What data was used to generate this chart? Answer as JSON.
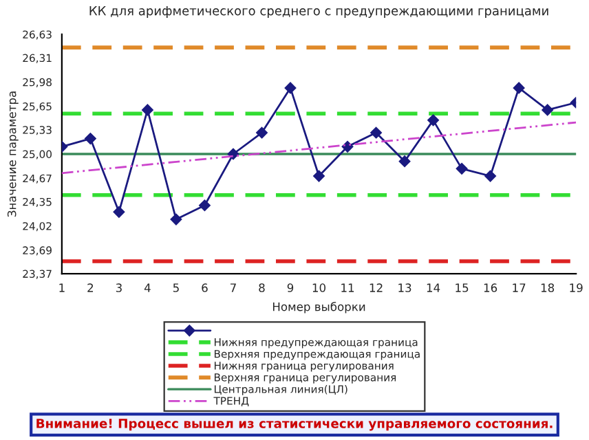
{
  "chart_data": {
    "type": "line",
    "title": "КК для арифметического среднего с предупреждающими границами",
    "xlabel": "Номер выборки",
    "ylabel": "Значение параметра",
    "categories": [
      "1",
      "2",
      "3",
      "4",
      "5",
      "6",
      "7",
      "8",
      "9",
      "10",
      "11",
      "12",
      "13",
      "14",
      "15",
      "16",
      "17",
      "18",
      "19"
    ],
    "series": [
      {
        "color": "#1a1a80",
        "marker": "diamond",
        "values": [
          25.1,
          25.21,
          24.21,
          25.6,
          24.11,
          24.3,
          25.0,
          25.29,
          25.9,
          24.7,
          25.1,
          25.29,
          24.9,
          25.46,
          24.8,
          24.7,
          25.9,
          25.6,
          25.7
        ]
      },
      {
        "name": "ТРЕНД",
        "type": "line",
        "x": [
          "1",
          "19"
        ],
        "color": "#cc44cc",
        "line_style": "dotted",
        "marker": "none",
        "values": [
          24.74,
          25.43
        ]
      }
    ],
    "ref_lines": [
      {
        "axis": "y",
        "value": 24.44,
        "label": "Нижняя предупреждающая граница",
        "color": "#33dd33",
        "line_style": "dashed"
      },
      {
        "axis": "y",
        "value": 25.55,
        "label": "Верхняя предупреждающая граница",
        "color": "#33dd33",
        "line_style": "dashed"
      },
      {
        "axis": "y",
        "value": 23.54,
        "label": "Нижняя граница регулирования",
        "color": "#dd2222",
        "line_style": "dashed"
      },
      {
        "axis": "y",
        "value": 26.45,
        "label": "Верхняя граница регулирования",
        "color": "#e08a2a",
        "line_style": "dashed"
      },
      {
        "axis": "y",
        "value": 25.0,
        "label": "Центральная линия(ЦЛ)",
        "color": "#3a8a5a",
        "line_style": "solid"
      }
    ],
    "ylim": [
      23.37,
      26.63
    ],
    "yticks": [
      {
        "value": 23.37,
        "label": "23,37"
      },
      {
        "value": 23.69,
        "label": "23,69"
      },
      {
        "value": 24.02,
        "label": "24,02"
      },
      {
        "value": 24.35,
        "label": "24,35"
      },
      {
        "value": 24.67,
        "label": "24,67"
      },
      {
        "value": 25.0,
        "label": "25,00"
      },
      {
        "value": 25.33,
        "label": "25,33"
      },
      {
        "value": 25.65,
        "label": "25,65"
      },
      {
        "value": 25.98,
        "label": "25,98"
      },
      {
        "value": 26.31,
        "label": "26,31"
      },
      {
        "value": 26.63,
        "label": "26,63"
      }
    ],
    "grid": false,
    "legend": "bottom",
    "annotations": [
      "Внимание! Процесс вышел из статистически управляемого состояния."
    ]
  }
}
